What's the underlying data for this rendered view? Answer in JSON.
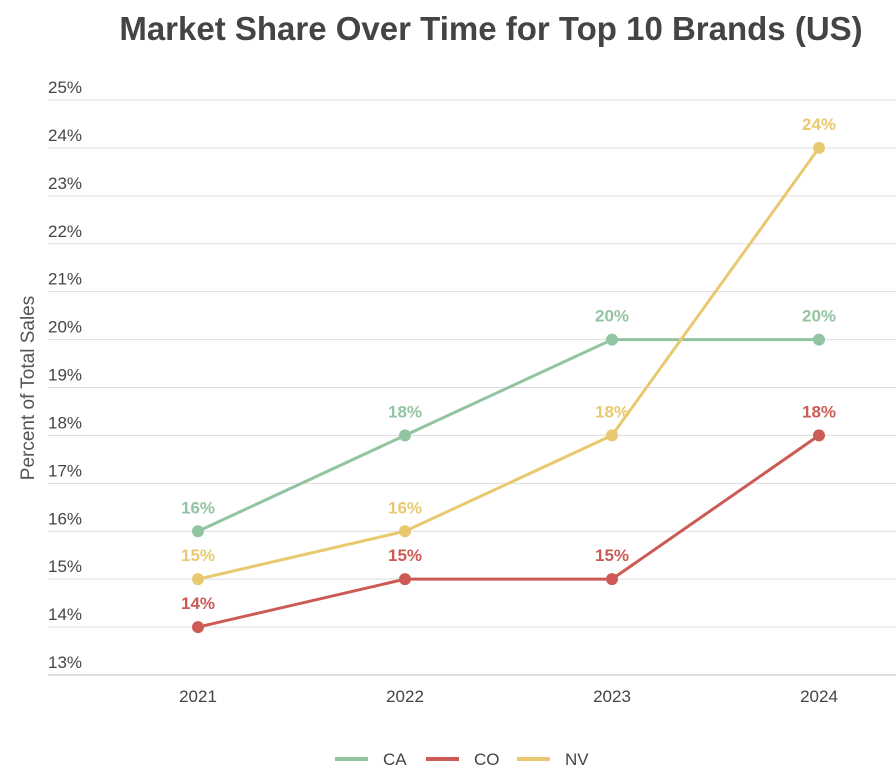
{
  "chart_data": {
    "type": "line",
    "title": "Market Share Over Time for Top 10 Brands (US)",
    "xlabel": "",
    "ylabel": "Percent of Total Sales",
    "categories": [
      "2021",
      "2022",
      "2023",
      "2024"
    ],
    "ylim": [
      13,
      25
    ],
    "yticks": [
      "13%",
      "14%",
      "15%",
      "16%",
      "17%",
      "18%",
      "19%",
      "20%",
      "21%",
      "22%",
      "23%",
      "24%",
      "25%"
    ],
    "grid": true,
    "legend": "bottom",
    "series": [
      {
        "name": "CA",
        "color": "#93c4a2",
        "values": [
          16,
          18,
          20,
          20
        ],
        "labels": [
          "16%",
          "18%",
          "20%",
          "20%"
        ]
      },
      {
        "name": "CO",
        "color": "#cc5b55",
        "values": [
          14,
          15,
          15,
          18
        ],
        "labels": [
          "14%",
          "15%",
          "15%",
          "18%"
        ]
      },
      {
        "name": "NV",
        "color": "#e9c96f",
        "values": [
          15,
          16,
          18,
          24
        ],
        "labels": [
          "15%",
          "16%",
          "18%",
          "24%"
        ]
      }
    ]
  }
}
